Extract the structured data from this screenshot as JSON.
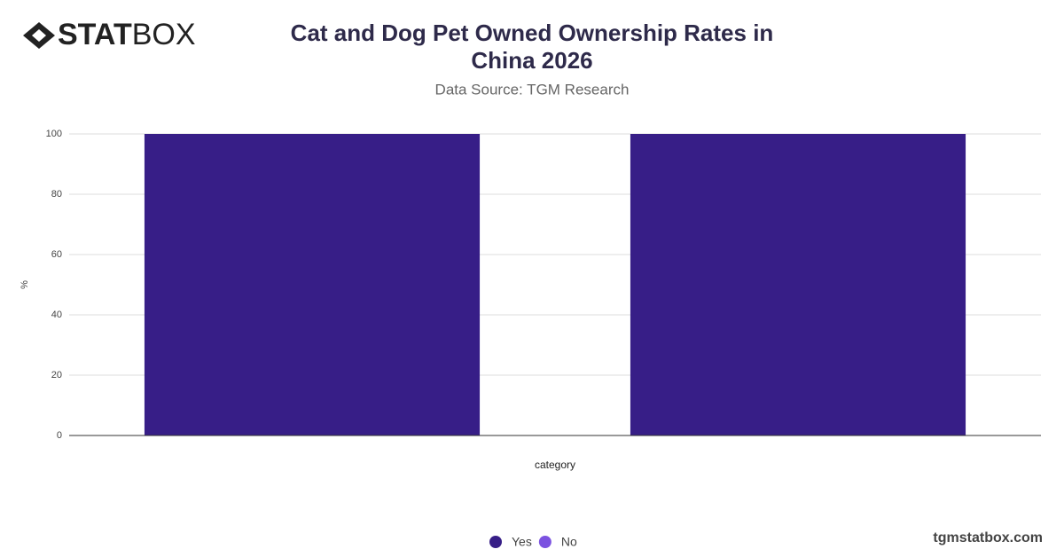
{
  "logo": {
    "bold": "STAT",
    "light": "BOX"
  },
  "watermark": "tgmstatbox.com",
  "chart_data": {
    "type": "bar",
    "stacked": true,
    "title": "Cat and Dog Pet Owned Ownership Rates in China 2026",
    "subtitle": "Data Source: TGM Research",
    "y_label": "%",
    "x_label": "category",
    "categories": [
      null,
      null
    ],
    "series": [
      {
        "name": "Yes",
        "color": "#371e87",
        "values": [
          100,
          100
        ]
      },
      {
        "name": "No",
        "color": "#7b52e0",
        "values": [
          0,
          0
        ]
      }
    ],
    "ylim": [
      0,
      100
    ],
    "yticks": [
      0,
      20,
      40,
      60,
      80,
      100
    ],
    "grid": true,
    "legend": "bottom"
  }
}
